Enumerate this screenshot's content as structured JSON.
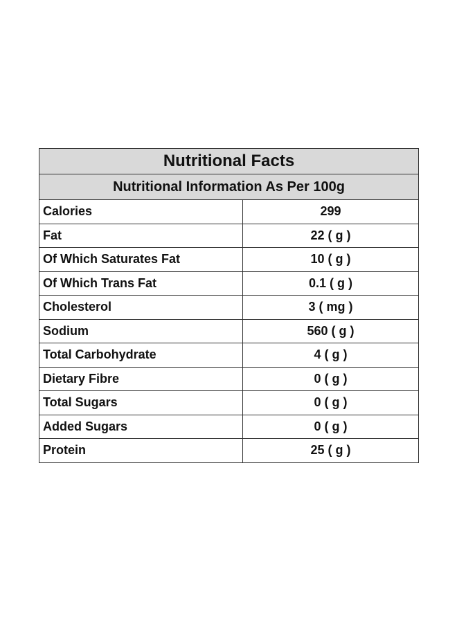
{
  "table": {
    "title": "Nutritional Facts",
    "subtitle": "Nutritional Information As Per 100g",
    "rows": [
      {
        "name": "Calories",
        "value": "299"
      },
      {
        "name": "Fat",
        "value": "22 ( g )"
      },
      {
        "name": "Of Which Saturates Fat",
        "value": "10 ( g )"
      },
      {
        "name": "Of Which Trans Fat",
        "value": "0.1 ( g )"
      },
      {
        "name": "Cholesterol",
        "value": "3 ( mg )"
      },
      {
        "name": "Sodium",
        "value": "560 ( g )"
      },
      {
        "name": "Total Carbohydrate",
        "value": "4 ( g )"
      },
      {
        "name": "Dietary Fibre",
        "value": "0 ( g )"
      },
      {
        "name": "Total Sugars",
        "value": "0 ( g )"
      },
      {
        "name": "Added Sugars",
        "value": "0 ( g )"
      },
      {
        "name": "Protein",
        "value": "25 ( g )"
      }
    ]
  },
  "colors": {
    "header_background": "#d9d9d9",
    "border": "#333333",
    "text": "#111111"
  }
}
